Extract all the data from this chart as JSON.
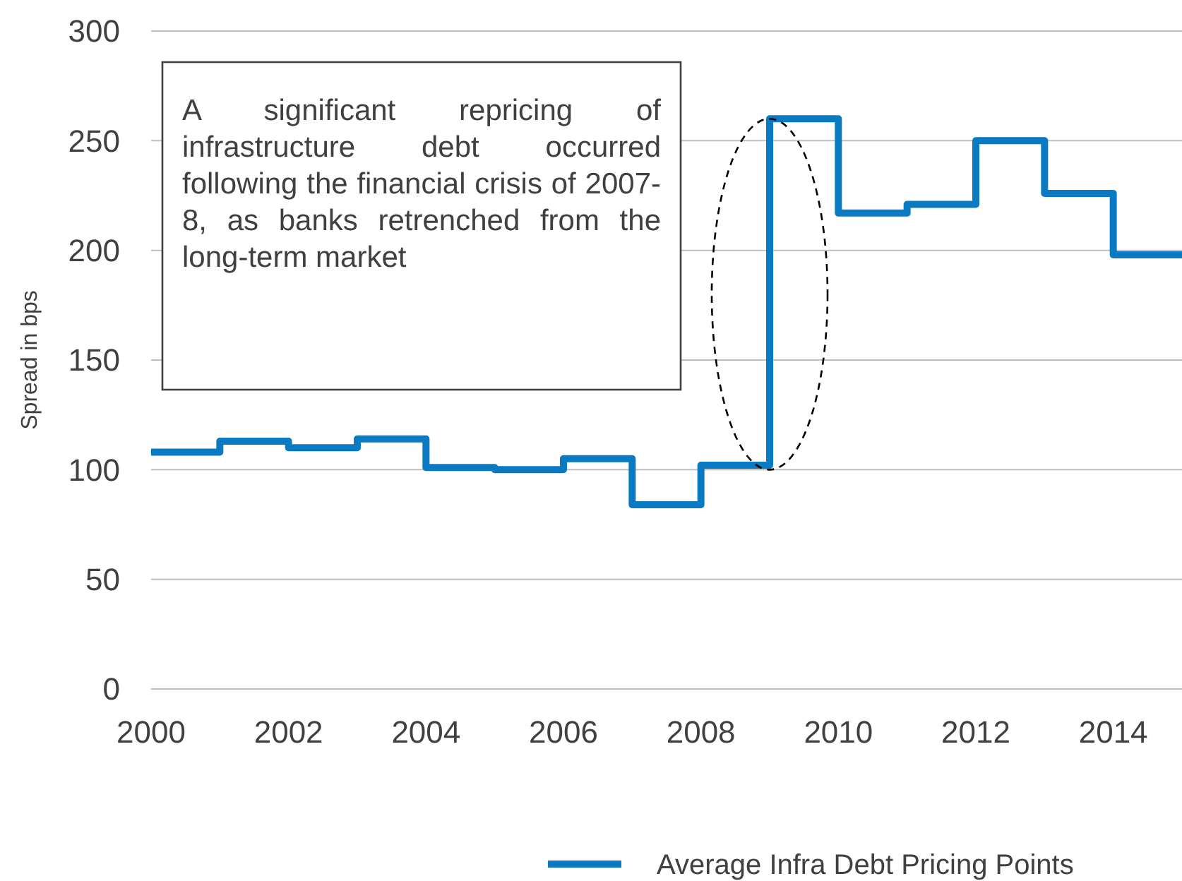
{
  "chart_data": {
    "type": "step",
    "ylabel": "Spread in bps",
    "x": [
      2000,
      2001,
      2002,
      2003,
      2004,
      2005,
      2006,
      2007,
      2008,
      2009,
      2010,
      2011,
      2012,
      2013,
      2014,
      2015
    ],
    "series": [
      {
        "name": "Average Infra Debt Pricing Points",
        "color": "#0a7bc2",
        "values": [
          108,
          113,
          110,
          114,
          101,
          100,
          105,
          84,
          102,
          260,
          217,
          221,
          250,
          226,
          198,
          198
        ]
      }
    ],
    "xlim": [
      2000,
      2015
    ],
    "xticks": [
      2000,
      2002,
      2004,
      2006,
      2008,
      2010,
      2012,
      2014
    ],
    "ylim": [
      0,
      300
    ],
    "yticks": [
      0,
      50,
      100,
      150,
      200,
      250,
      300
    ],
    "grid": "y",
    "legend": "bottom",
    "marker": "none",
    "line_style": "solid",
    "annotations": [
      "A significant repricing of infrastructure debt occurred following the financial crisis of 2007-8, as banks retrenched from the long-term market"
    ]
  }
}
